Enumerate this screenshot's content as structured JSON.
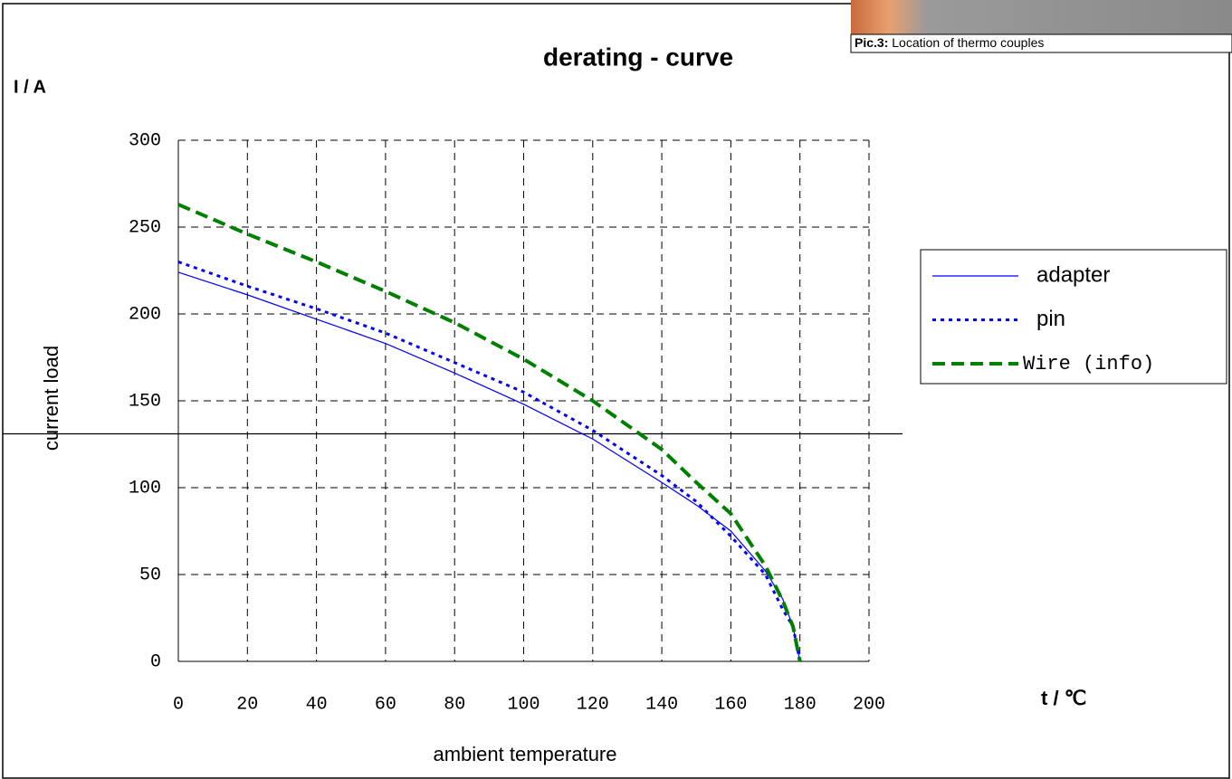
{
  "caption": {
    "label": "Pic.3:",
    "text": "Location of thermo couples"
  },
  "chart_data": {
    "type": "line",
    "title": "derating - curve",
    "y_unit": "I / A",
    "y_label": "current load",
    "x_label": "ambient temperature",
    "x_unit": "t / ℃",
    "x": [
      0,
      20,
      40,
      60,
      80,
      100,
      120,
      140,
      150,
      160,
      170,
      175,
      178,
      180
    ],
    "series": [
      {
        "name": "adapter",
        "color": "#0000ff",
        "style": "solid",
        "values": [
          224,
          211,
          197,
          183,
          166,
          148,
          128,
          103,
          90,
          75,
          52,
          36,
          20,
          0
        ]
      },
      {
        "name": "pin",
        "color": "#0000ff",
        "style": "dotted",
        "values": [
          230,
          216,
          203,
          189,
          172,
          155,
          133,
          107,
          92,
          72,
          50,
          30,
          20,
          0
        ]
      },
      {
        "name": "Wire (info)",
        "color": "#008000",
        "style": "dashed",
        "values": [
          263,
          246,
          230,
          213,
          195,
          174,
          150,
          122,
          103,
          85,
          55,
          35,
          20,
          0
        ]
      }
    ],
    "reference_line": 131,
    "xlim": [
      0,
      200
    ],
    "xticks": [
      0,
      20,
      40,
      60,
      80,
      100,
      120,
      140,
      160,
      180,
      200
    ],
    "ylim": [
      0,
      300
    ],
    "yticks": [
      0,
      50,
      100,
      150,
      200,
      250,
      300
    ],
    "grid": true,
    "legend": "right"
  }
}
